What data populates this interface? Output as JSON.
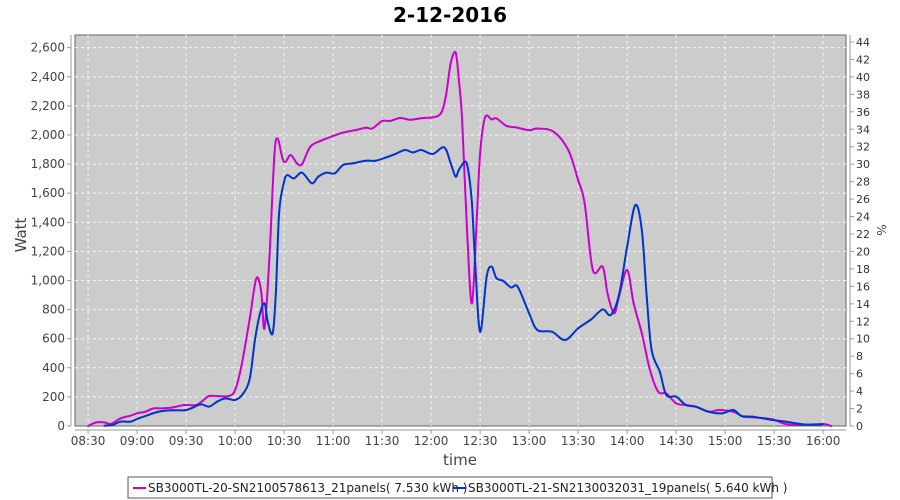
{
  "chart_data": {
    "type": "line",
    "title": "2-12-2016",
    "xlabel": "time",
    "ylabel": "Watt",
    "y2label": "%",
    "xlim": [
      "08:22",
      "16:14"
    ],
    "ylim": [
      0,
      2687
    ],
    "y2lim": [
      0,
      44.8
    ],
    "grid": true,
    "legend_position": "bottom",
    "background": "#cccccc",
    "x_ticks": [
      "08:30",
      "09:00",
      "09:30",
      "10:00",
      "10:30",
      "11:00",
      "11:30",
      "12:00",
      "12:30",
      "13:00",
      "13:30",
      "14:00",
      "14:30",
      "15:00",
      "15:30",
      "16:00"
    ],
    "y_ticks": [
      "0",
      "200",
      "400",
      "600",
      "800",
      "1,000",
      "1,200",
      "1,400",
      "1,600",
      "1,800",
      "2,000",
      "2,200",
      "2,400",
      "2,600"
    ],
    "y2_ticks": [
      "0",
      "2",
      "4",
      "6",
      "8",
      "10",
      "12",
      "14",
      "16",
      "18",
      "20",
      "22",
      "24",
      "26",
      "28",
      "30",
      "32",
      "34",
      "36",
      "38",
      "40",
      "42",
      "44"
    ],
    "series": [
      {
        "name": "SB3000TL-20-SN2100578613_21panels( 7.530 kWh )",
        "color": "#cc00cc",
        "points": [
          [
            "08:30",
            0
          ],
          [
            "08:35",
            25
          ],
          [
            "08:40",
            25
          ],
          [
            "08:44",
            15
          ],
          [
            "08:50",
            53
          ],
          [
            "08:56",
            71
          ],
          [
            "09:00",
            87
          ],
          [
            "09:05",
            98
          ],
          [
            "09:10",
            121
          ],
          [
            "09:15",
            121
          ],
          [
            "09:21",
            126
          ],
          [
            "09:29",
            144
          ],
          [
            "09:36",
            144
          ],
          [
            "09:40",
            172
          ],
          [
            "09:44",
            206
          ],
          [
            "09:49",
            206
          ],
          [
            "09:56",
            206
          ],
          [
            "10:00",
            247
          ],
          [
            "10:04",
            419
          ],
          [
            "10:09",
            740
          ],
          [
            "10:13",
            1014
          ],
          [
            "10:16",
            923
          ],
          [
            "10:18",
            671
          ],
          [
            "10:21",
            1152
          ],
          [
            "10:24",
            1850
          ],
          [
            "10:26",
            1976
          ],
          [
            "10:29",
            1839
          ],
          [
            "10:31",
            1816
          ],
          [
            "10:34",
            1862
          ],
          [
            "10:38",
            1804
          ],
          [
            "10:41",
            1800
          ],
          [
            "10:46",
            1919
          ],
          [
            "10:52",
            1958
          ],
          [
            "11:00",
            1993
          ],
          [
            "11:06",
            2016
          ],
          [
            "11:14",
            2034
          ],
          [
            "11:20",
            2050
          ],
          [
            "11:24",
            2045
          ],
          [
            "11:30",
            2096
          ],
          [
            "11:35",
            2096
          ],
          [
            "11:41",
            2117
          ],
          [
            "11:47",
            2105
          ],
          [
            "11:55",
            2117
          ],
          [
            "12:01",
            2121
          ],
          [
            "12:06",
            2149
          ],
          [
            "12:09",
            2264
          ],
          [
            "12:12",
            2493
          ],
          [
            "12:15",
            2566
          ],
          [
            "12:17",
            2378
          ],
          [
            "12:19",
            2100
          ],
          [
            "12:22",
            1346
          ],
          [
            "12:25",
            843
          ],
          [
            "12:28",
            1437
          ],
          [
            "12:30",
            1873
          ],
          [
            "12:33",
            2120
          ],
          [
            "12:37",
            2107
          ],
          [
            "12:40",
            2114
          ],
          [
            "12:46",
            2063
          ],
          [
            "12:52",
            2052
          ],
          [
            "13:00",
            2033
          ],
          [
            "13:05",
            2044
          ],
          [
            "13:15",
            2022
          ],
          [
            "13:24",
            1896
          ],
          [
            "13:30",
            1690
          ],
          [
            "13:34",
            1530
          ],
          [
            "13:39",
            1072
          ],
          [
            "13:45",
            1095
          ],
          [
            "13:48",
            911
          ],
          [
            "13:52",
            774
          ],
          [
            "13:55",
            888
          ],
          [
            "14:00",
            1072
          ],
          [
            "14:04",
            843
          ],
          [
            "14:09",
            637
          ],
          [
            "14:14",
            385
          ],
          [
            "14:19",
            236
          ],
          [
            "14:24",
            224
          ],
          [
            "14:30",
            156
          ],
          [
            "14:36",
            144
          ],
          [
            "14:42",
            133
          ],
          [
            "14:50",
            98
          ],
          [
            "14:56",
            110
          ],
          [
            "15:05",
            98
          ],
          [
            "15:11",
            64
          ],
          [
            "15:17",
            60
          ],
          [
            "15:29",
            46
          ],
          [
            "15:37",
            14
          ],
          [
            "15:48",
            7
          ],
          [
            "16:00",
            14
          ],
          [
            "16:05",
            0
          ]
        ]
      },
      {
        "name": "SB3000TL-21-SN2130032031_19panels( 5.640 kWh )",
        "color": "#0033cc",
        "points": [
          [
            "08:40",
            2
          ],
          [
            "08:45",
            7
          ],
          [
            "08:50",
            30
          ],
          [
            "08:56",
            30
          ],
          [
            "09:01",
            53
          ],
          [
            "09:07",
            76
          ],
          [
            "09:13",
            98
          ],
          [
            "09:21",
            108
          ],
          [
            "09:29",
            108
          ],
          [
            "09:33",
            121
          ],
          [
            "09:39",
            149
          ],
          [
            "09:44",
            133
          ],
          [
            "09:49",
            167
          ],
          [
            "09:54",
            190
          ],
          [
            "10:00",
            179
          ],
          [
            "10:05",
            224
          ],
          [
            "10:09",
            327
          ],
          [
            "10:12",
            579
          ],
          [
            "10:15",
            762
          ],
          [
            "10:18",
            843
          ],
          [
            "10:20",
            716
          ],
          [
            "10:23",
            637
          ],
          [
            "10:25",
            923
          ],
          [
            "10:27",
            1472
          ],
          [
            "10:30",
            1678
          ],
          [
            "10:32",
            1724
          ],
          [
            "10:36",
            1702
          ],
          [
            "10:41",
            1741
          ],
          [
            "10:47",
            1668
          ],
          [
            "10:51",
            1714
          ],
          [
            "10:56",
            1741
          ],
          [
            "11:01",
            1736
          ],
          [
            "11:06",
            1793
          ],
          [
            "11:12",
            1805
          ],
          [
            "11:20",
            1823
          ],
          [
            "11:26",
            1823
          ],
          [
            "11:32",
            1844
          ],
          [
            "11:38",
            1869
          ],
          [
            "11:44",
            1897
          ],
          [
            "11:49",
            1880
          ],
          [
            "11:54",
            1897
          ],
          [
            "12:01",
            1869
          ],
          [
            "12:08",
            1915
          ],
          [
            "12:12",
            1805
          ],
          [
            "12:15",
            1714
          ],
          [
            "12:17",
            1760
          ],
          [
            "12:21",
            1817
          ],
          [
            "12:23",
            1737
          ],
          [
            "12:25",
            1531
          ],
          [
            "12:27",
            1118
          ],
          [
            "12:30",
            648
          ],
          [
            "12:34",
            1026
          ],
          [
            "12:37",
            1095
          ],
          [
            "12:40",
            1016
          ],
          [
            "12:44",
            998
          ],
          [
            "12:49",
            952
          ],
          [
            "12:53",
            957
          ],
          [
            "13:00",
            774
          ],
          [
            "13:05",
            660
          ],
          [
            "13:14",
            648
          ],
          [
            "13:22",
            591
          ],
          [
            "13:30",
            671
          ],
          [
            "13:38",
            733
          ],
          [
            "13:45",
            801
          ],
          [
            "13:50",
            763
          ],
          [
            "13:55",
            900
          ],
          [
            "14:00",
            1232
          ],
          [
            "14:05",
            1518
          ],
          [
            "14:09",
            1346
          ],
          [
            "14:12",
            888
          ],
          [
            "14:15",
            522
          ],
          [
            "14:20",
            373
          ],
          [
            "14:24",
            213
          ],
          [
            "14:30",
            202
          ],
          [
            "14:36",
            144
          ],
          [
            "14:42",
            133
          ],
          [
            "14:50",
            98
          ],
          [
            "14:58",
            87
          ],
          [
            "15:05",
            110
          ],
          [
            "15:10",
            69
          ],
          [
            "15:17",
            64
          ],
          [
            "15:29",
            41
          ],
          [
            "15:37",
            30
          ],
          [
            "15:48",
            11
          ],
          [
            "16:00",
            11
          ]
        ]
      }
    ]
  }
}
